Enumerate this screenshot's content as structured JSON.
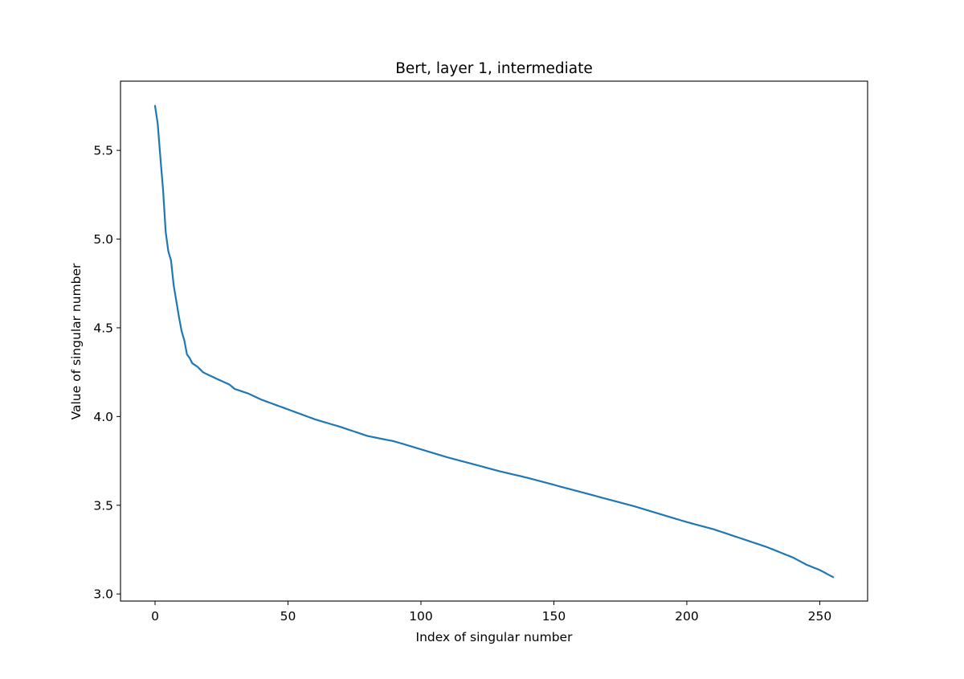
{
  "chart_data": {
    "type": "line",
    "title": "Bert, layer 1, intermediate",
    "xlabel": "Index of singular number",
    "ylabel": "Value of singular number",
    "xlim": [
      -13,
      268
    ],
    "ylim": [
      2.96,
      5.89
    ],
    "xticks": [
      0,
      50,
      100,
      150,
      200,
      250
    ],
    "xtick_labels": [
      "0",
      "50",
      "100",
      "150",
      "200",
      "250"
    ],
    "yticks": [
      3.0,
      3.5,
      4.0,
      4.5,
      5.0,
      5.5
    ],
    "ytick_labels": [
      "3.0",
      "3.5",
      "4.0",
      "4.5",
      "5.0",
      "5.5"
    ],
    "grid": false,
    "series_color": "#1f77b4",
    "series": [
      {
        "anchors": [
          [
            0,
            5.75
          ],
          [
            1,
            5.65
          ],
          [
            2,
            5.46
          ],
          [
            3,
            5.28
          ],
          [
            4,
            5.04
          ],
          [
            5,
            4.93
          ],
          [
            6,
            4.88
          ],
          [
            7,
            4.74
          ],
          [
            8,
            4.65
          ],
          [
            9,
            4.56
          ],
          [
            10,
            4.48
          ],
          [
            11,
            4.43
          ],
          [
            12,
            4.35
          ],
          [
            13,
            4.33
          ],
          [
            14,
            4.3
          ],
          [
            16,
            4.28
          ],
          [
            18,
            4.25
          ],
          [
            20,
            4.235
          ],
          [
            25,
            4.2
          ],
          [
            28,
            4.18
          ],
          [
            30,
            4.155
          ],
          [
            35,
            4.13
          ],
          [
            40,
            4.095
          ],
          [
            50,
            4.04
          ],
          [
            60,
            3.985
          ],
          [
            70,
            3.94
          ],
          [
            80,
            3.89
          ],
          [
            90,
            3.86
          ],
          [
            100,
            3.815
          ],
          [
            110,
            3.77
          ],
          [
            120,
            3.73
          ],
          [
            130,
            3.69
          ],
          [
            140,
            3.655
          ],
          [
            150,
            3.615
          ],
          [
            160,
            3.575
          ],
          [
            170,
            3.535
          ],
          [
            180,
            3.495
          ],
          [
            190,
            3.45
          ],
          [
            200,
            3.405
          ],
          [
            210,
            3.365
          ],
          [
            220,
            3.315
          ],
          [
            230,
            3.265
          ],
          [
            240,
            3.205
          ],
          [
            245,
            3.165
          ],
          [
            250,
            3.135
          ],
          [
            255,
            3.095
          ]
        ]
      }
    ]
  }
}
